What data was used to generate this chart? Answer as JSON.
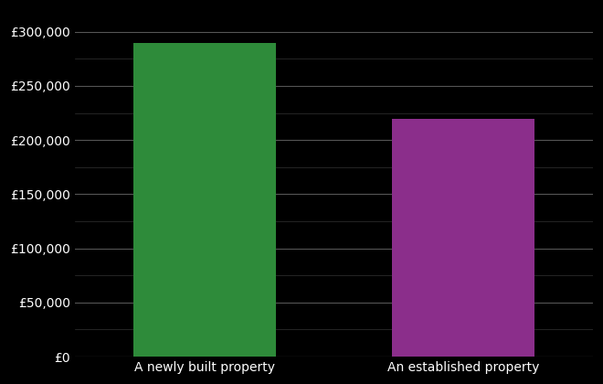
{
  "categories": [
    "A newly built property",
    "An established property"
  ],
  "values": [
    290000,
    220000
  ],
  "bar_colors": [
    "#2e8b3a",
    "#8b2e8b"
  ],
  "background_color": "#000000",
  "text_color": "#ffffff",
  "grid_color_major": "#555555",
  "grid_color_minor": "#333333",
  "ylim": [
    0,
    320000
  ],
  "yticks_major": [
    0,
    50000,
    100000,
    150000,
    200000,
    250000,
    300000
  ],
  "tick_fontsize": 10,
  "label_fontsize": 10
}
